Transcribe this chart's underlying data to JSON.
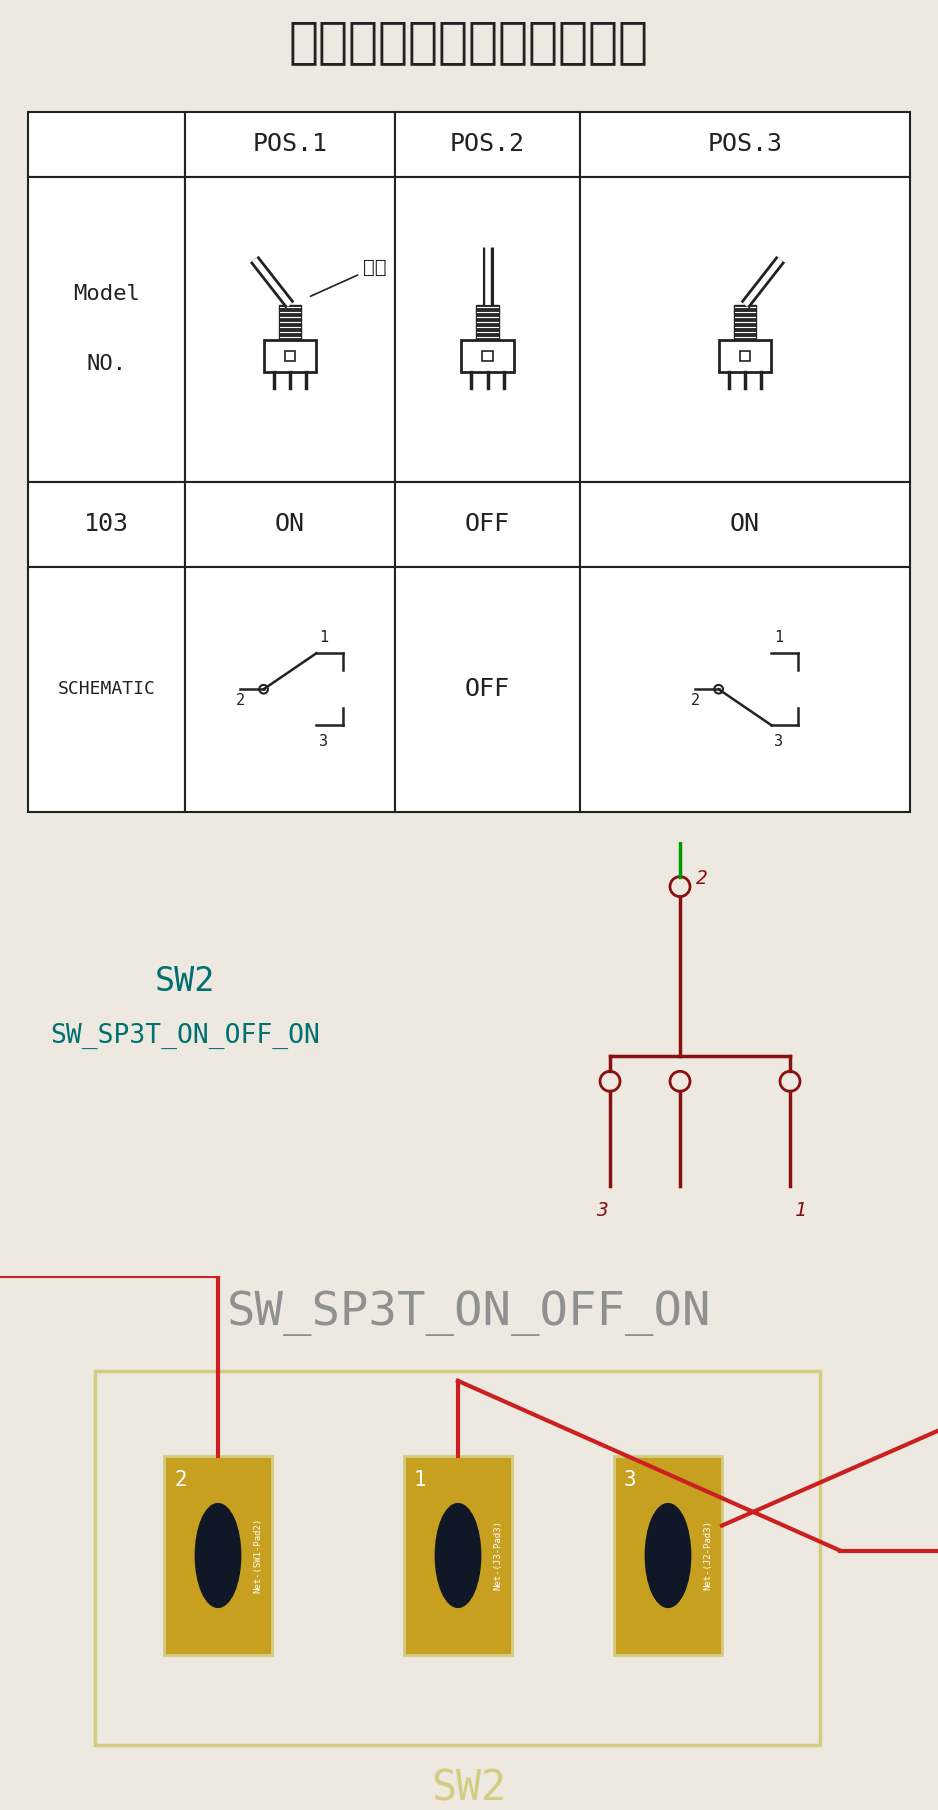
{
  "title": "手柄位置及导通端子示意图",
  "bg_top": "#ede8e0",
  "bg_mid": "#e0ddd6",
  "bg_pcb": "#0d1b2e",
  "table_color": "#222222",
  "pos_labels": [
    "POS.1",
    "POS.2",
    "POS.3"
  ],
  "keycap_label": "键槽",
  "teal_color": "#007070",
  "sw2_label": "SW2",
  "sw_type_label": "SW_SP3T_ON_OFF_ON",
  "pcb_border_color": "#d4cc80",
  "pcb_pad_color": "#c8a020",
  "pcb_pad_border": "#c8b840",
  "pcb_text_gray": "#909090",
  "pcb_wire_red": "#aa1818",
  "pcb_wire_red2": "#cc2020",
  "pcb_green": "#009900",
  "schematic_red": "#881010",
  "schematic_dark_red": "#660808",
  "white": "#ffffff",
  "black": "#111111",
  "pad_labels": [
    "2",
    "1",
    "3"
  ],
  "pad_nets": [
    "Net-(SW1-Pad2)",
    "Net-(J3-Pad3)",
    "Net-(J2-Pad3)"
  ]
}
